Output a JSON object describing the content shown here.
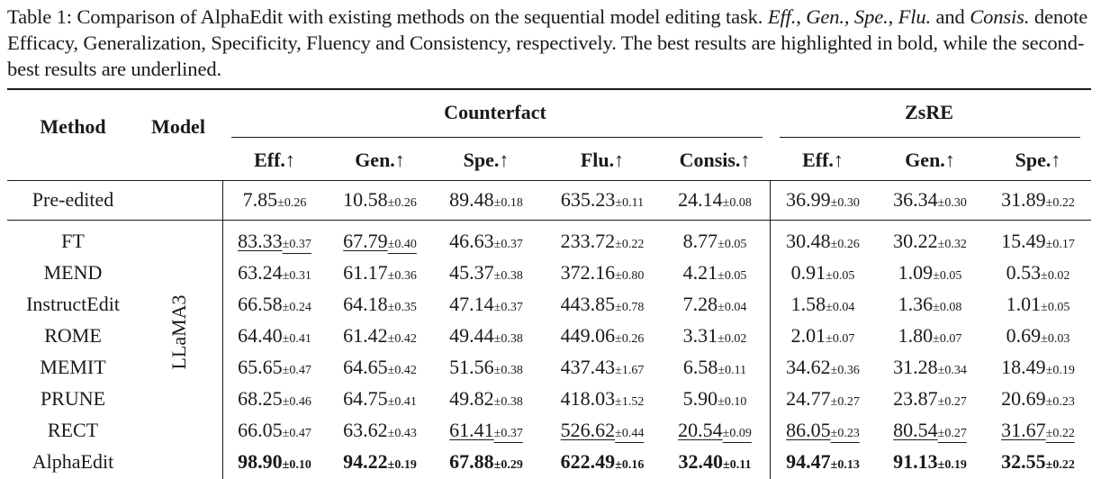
{
  "caption": {
    "label": "Table 1:",
    "part1": " Comparison of AlphaEdit with existing methods on the sequential model editing task. ",
    "abbr_eff": "Eff.",
    "sep1": ", ",
    "abbr_gen": "Gen.",
    "sep2": ", ",
    "abbr_spe": "Spe.",
    "sep3": ", ",
    "abbr_flu": "Flu.",
    "sep4": " and ",
    "abbr_consis": "Consis.",
    "part2": " denote Efficacy, Generalization, Specificity, Fluency and Consistency, respectively. The best results are highlighted in bold, while the second-best results are underlined."
  },
  "table": {
    "headers": {
      "method": "Method",
      "model": "Model",
      "group_counterfact": "Counterfact",
      "group_zsre": "ZsRE",
      "columns": [
        "Eff.↑",
        "Gen.↑",
        "Spe.↑",
        "Flu.↑",
        "Consis.↑",
        "Eff.↑",
        "Gen.↑",
        "Spe.↑"
      ]
    },
    "model_name": "LLaMA3",
    "rows": [
      {
        "method": "Pre-edited",
        "cells": [
          {
            "v": "7.85",
            "s": "±0.26"
          },
          {
            "v": "10.58",
            "s": "±0.26"
          },
          {
            "v": "89.48",
            "s": "±0.18"
          },
          {
            "v": "635.23",
            "s": "±0.11"
          },
          {
            "v": "24.14",
            "s": "±0.08"
          },
          {
            "v": "36.99",
            "s": "±0.30"
          },
          {
            "v": "36.34",
            "s": "±0.30"
          },
          {
            "v": "31.89",
            "s": "±0.22"
          }
        ]
      },
      {
        "method": "FT",
        "cells": [
          {
            "v": "83.33",
            "s": "±0.37",
            "u": true
          },
          {
            "v": "67.79",
            "s": "±0.40",
            "u": true
          },
          {
            "v": "46.63",
            "s": "±0.37"
          },
          {
            "v": "233.72",
            "s": "±0.22"
          },
          {
            "v": "8.77",
            "s": "±0.05"
          },
          {
            "v": "30.48",
            "s": "±0.26"
          },
          {
            "v": "30.22",
            "s": "±0.32"
          },
          {
            "v": "15.49",
            "s": "±0.17"
          }
        ]
      },
      {
        "method": "MEND",
        "cells": [
          {
            "v": "63.24",
            "s": "±0.31"
          },
          {
            "v": "61.17",
            "s": "±0.36"
          },
          {
            "v": "45.37",
            "s": "±0.38"
          },
          {
            "v": "372.16",
            "s": "±0.80"
          },
          {
            "v": "4.21",
            "s": "±0.05"
          },
          {
            "v": "0.91",
            "s": "±0.05"
          },
          {
            "v": "1.09",
            "s": "±0.05"
          },
          {
            "v": "0.53",
            "s": "±0.02"
          }
        ]
      },
      {
        "method": "InstructEdit",
        "cells": [
          {
            "v": "66.58",
            "s": "±0.24"
          },
          {
            "v": "64.18",
            "s": "±0.35"
          },
          {
            "v": "47.14",
            "s": "±0.37"
          },
          {
            "v": "443.85",
            "s": "±0.78"
          },
          {
            "v": "7.28",
            "s": "±0.04"
          },
          {
            "v": "1.58",
            "s": "±0.04"
          },
          {
            "v": "1.36",
            "s": "±0.08"
          },
          {
            "v": "1.01",
            "s": "±0.05"
          }
        ]
      },
      {
        "method": "ROME",
        "cells": [
          {
            "v": "64.40",
            "s": "±0.41"
          },
          {
            "v": "61.42",
            "s": "±0.42"
          },
          {
            "v": "49.44",
            "s": "±0.38"
          },
          {
            "v": "449.06",
            "s": "±0.26"
          },
          {
            "v": "3.31",
            "s": "±0.02"
          },
          {
            "v": "2.01",
            "s": "±0.07"
          },
          {
            "v": "1.80",
            "s": "±0.07"
          },
          {
            "v": "0.69",
            "s": "±0.03"
          }
        ]
      },
      {
        "method": "MEMIT",
        "cells": [
          {
            "v": "65.65",
            "s": "±0.47"
          },
          {
            "v": "64.65",
            "s": "±0.42"
          },
          {
            "v": "51.56",
            "s": "±0.38"
          },
          {
            "v": "437.43",
            "s": "±1.67"
          },
          {
            "v": "6.58",
            "s": "±0.11"
          },
          {
            "v": "34.62",
            "s": "±0.36"
          },
          {
            "v": "31.28",
            "s": "±0.34"
          },
          {
            "v": "18.49",
            "s": "±0.19"
          }
        ]
      },
      {
        "method": "PRUNE",
        "cells": [
          {
            "v": "68.25",
            "s": "±0.46"
          },
          {
            "v": "64.75",
            "s": "±0.41"
          },
          {
            "v": "49.82",
            "s": "±0.38"
          },
          {
            "v": "418.03",
            "s": "±1.52"
          },
          {
            "v": "5.90",
            "s": "±0.10"
          },
          {
            "v": "24.77",
            "s": "±0.27"
          },
          {
            "v": "23.87",
            "s": "±0.27"
          },
          {
            "v": "20.69",
            "s": "±0.23"
          }
        ]
      },
      {
        "method": "RECT",
        "cells": [
          {
            "v": "66.05",
            "s": "±0.47"
          },
          {
            "v": "63.62",
            "s": "±0.43"
          },
          {
            "v": "61.41",
            "s": "±0.37",
            "u": true
          },
          {
            "v": "526.62",
            "s": "±0.44",
            "u": true
          },
          {
            "v": "20.54",
            "s": "±0.09",
            "u": true
          },
          {
            "v": "86.05",
            "s": "±0.23",
            "u": true
          },
          {
            "v": "80.54",
            "s": "±0.27",
            "u": true
          },
          {
            "v": "31.67",
            "s": "±0.22",
            "u": true
          }
        ]
      },
      {
        "method": "AlphaEdit",
        "cells": [
          {
            "v": "98.90",
            "s": "±0.10",
            "b": true
          },
          {
            "v": "94.22",
            "s": "±0.19",
            "b": true
          },
          {
            "v": "67.88",
            "s": "±0.29",
            "b": true
          },
          {
            "v": "622.49",
            "s": "±0.16",
            "b": true
          },
          {
            "v": "32.40",
            "s": "±0.11",
            "b": true
          },
          {
            "v": "94.47",
            "s": "±0.13",
            "b": true
          },
          {
            "v": "91.13",
            "s": "±0.19",
            "b": true
          },
          {
            "v": "32.55",
            "s": "±0.22",
            "b": true
          }
        ]
      }
    ]
  }
}
